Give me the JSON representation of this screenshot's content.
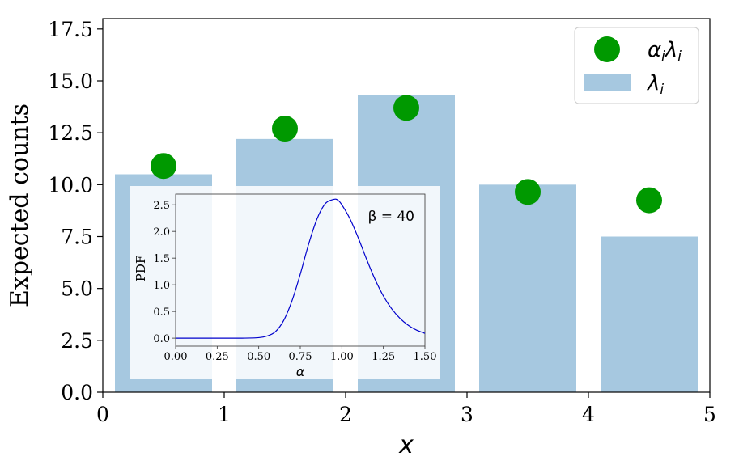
{
  "chart_data": [
    {
      "type": "bar",
      "xlabel": "x",
      "ylabel": "Expected counts",
      "xlim": [
        0,
        5
      ],
      "ylim": [
        0,
        18
      ],
      "xticks": [
        "0",
        "1",
        "2",
        "3",
        "4",
        "5"
      ],
      "yticks": [
        "0.0",
        "2.5",
        "5.0",
        "7.5",
        "10.0",
        "12.5",
        "15.0",
        "17.5"
      ],
      "grid": false,
      "legend_position": "top-right",
      "series": [
        {
          "name": "λ_i",
          "kind": "bar",
          "color": "#a6c8e0",
          "x": [
            0.5,
            1.5,
            2.5,
            3.5,
            4.5
          ],
          "values": [
            10.5,
            12.2,
            14.3,
            10.0,
            7.5
          ]
        },
        {
          "name": "α_i λ_i",
          "kind": "scatter",
          "color": "#009900",
          "x": [
            0.5,
            1.5,
            2.5,
            3.5,
            4.5
          ],
          "values": [
            10.9,
            12.7,
            13.7,
            9.65,
            9.25
          ]
        }
      ],
      "legend": {
        "scatter_label_base": [
          "α",
          "λ"
        ],
        "scatter_label_sub": "i",
        "bar_label_base": "λ",
        "bar_label_sub": "i"
      }
    },
    {
      "type": "line",
      "role": "inset",
      "xlabel": "α",
      "ylabel": "PDF",
      "annotation": "β = 40",
      "xlim": [
        0,
        1.5
      ],
      "ylim": [
        -0.15,
        2.7
      ],
      "xticks": [
        "0.00",
        "0.25",
        "0.50",
        "0.75",
        "1.00",
        "1.25",
        "1.50"
      ],
      "yticks": [
        "0.0",
        "0.5",
        "1.0",
        "1.5",
        "2.0",
        "2.5"
      ],
      "color": "#0000cc",
      "x": [
        0.0,
        0.2,
        0.4,
        0.5,
        0.55,
        0.6,
        0.65,
        0.7,
        0.75,
        0.8,
        0.85,
        0.9,
        0.95,
        0.975,
        1.0,
        1.05,
        1.1,
        1.15,
        1.2,
        1.25,
        1.3,
        1.35,
        1.4,
        1.45,
        1.5
      ],
      "y": [
        0.0,
        0.0,
        0.0,
        0.01,
        0.04,
        0.12,
        0.33,
        0.7,
        1.2,
        1.76,
        2.23,
        2.52,
        2.6,
        2.59,
        2.5,
        2.23,
        1.87,
        1.47,
        1.1,
        0.79,
        0.55,
        0.37,
        0.24,
        0.15,
        0.09
      ]
    }
  ]
}
